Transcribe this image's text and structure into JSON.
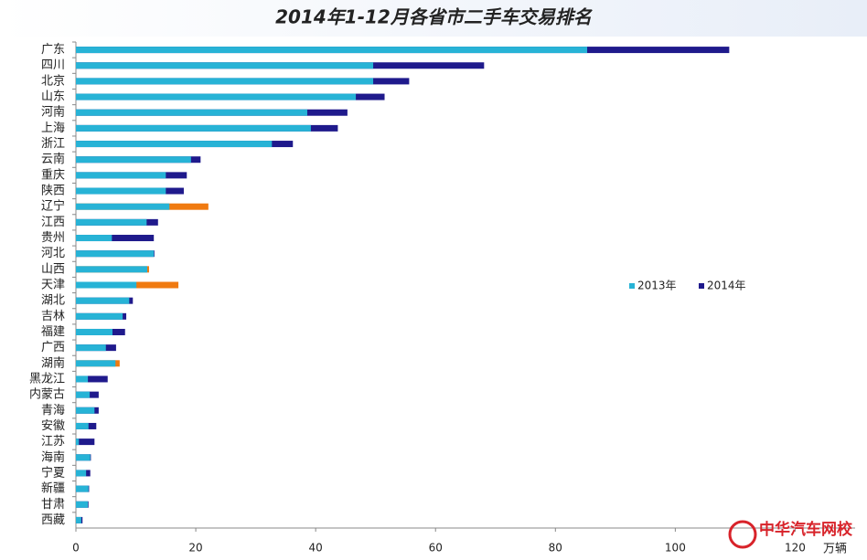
{
  "chart_data": {
    "type": "overlap-hbar",
    "title": "2014年1-12月各省市二手车交易排名",
    "unit": "万辆",
    "watermark": "中华汽车网校",
    "categories": [
      "广东",
      "四川",
      "北京",
      "山东",
      "河南",
      "上海",
      "浙江",
      "云南",
      "重庆",
      "陕西",
      "辽宁",
      "江西",
      "贵州",
      "河北",
      "山西",
      "天津",
      "湖北",
      "吉林",
      "福建",
      "广西",
      "湖南",
      "黑龙江",
      "内蒙古",
      "青海",
      "安徽",
      "江苏",
      "海南",
      "宁夏",
      "新疆",
      "甘肃",
      "西藏"
    ],
    "series": [
      {
        "name": "2014年",
        "color": "#1f1a8c",
        "colors": [
          "#1f1a8c",
          "#1f1a8c",
          "#1f1a8c",
          "#1f1a8c",
          "#1f1a8c",
          "#1f1a8c",
          "#1f1a8c",
          "#1f1a8c",
          "#1f1a8c",
          "#1f1a8c",
          "#f07a10",
          "#1f1a8c",
          "#1f1a8c",
          "#1f1a8c",
          "#f07a10",
          "#f07a10",
          "#1f1a8c",
          "#1f1a8c",
          "#1f1a8c",
          "#1f1a8c",
          "#f07a10",
          "#1f1a8c",
          "#1f1a8c",
          "#1f1a8c",
          "#1f1a8c",
          "#1f1a8c",
          "#1f1a8c",
          "#1f1a8c",
          "#1f1a8c",
          "#1f1a8c",
          "#1f1a8c"
        ],
        "values": [
          109,
          68.1,
          55.6,
          51.5,
          45.3,
          43.7,
          36.2,
          20.8,
          18.5,
          18,
          22.1,
          13.7,
          13,
          13.1,
          12.2,
          17.1,
          9.5,
          8.4,
          8.2,
          6.7,
          7.3,
          5.3,
          3.8,
          3.8,
          3.4,
          3.1,
          2.5,
          2.4,
          2.2,
          2.1,
          1.1
        ]
      },
      {
        "name": "2013年",
        "color": "#27b3d6",
        "values": [
          85.3,
          49.6,
          49.6,
          46.7,
          38.6,
          39.2,
          32.7,
          19.2,
          15,
          15,
          15.6,
          11.8,
          6,
          13,
          11.9,
          10.1,
          8.9,
          7.8,
          6.1,
          5,
          6.6,
          2,
          2.3,
          3.1,
          2.1,
          0.5,
          2.4,
          1.7,
          2.1,
          2,
          0.9
        ]
      }
    ],
    "legend_order": [
      1,
      0
    ],
    "xlim": [
      0,
      130
    ],
    "xticks": [
      0,
      20,
      40,
      60,
      80,
      100,
      120
    ]
  }
}
